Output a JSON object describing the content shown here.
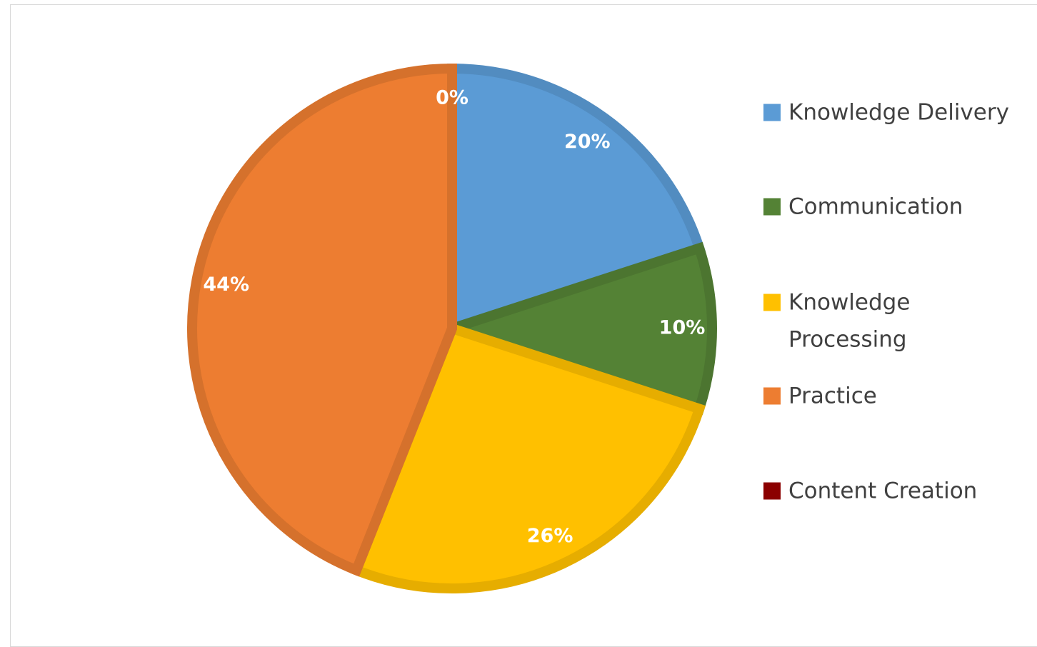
{
  "chart_data": {
    "type": "pie",
    "categories": [
      "Knowledge Delivery",
      "Communication",
      "Knowledge Processing",
      "Practice",
      "Content Creation"
    ],
    "values": [
      20,
      10,
      26,
      44,
      0
    ],
    "value_labels": [
      "20%",
      "10%",
      "26%",
      "44%",
      "0%"
    ],
    "colors": [
      "#5b9bd5",
      "#548235",
      "#ffc000",
      "#ed7d31",
      "#8b0000"
    ],
    "legend": "right"
  }
}
